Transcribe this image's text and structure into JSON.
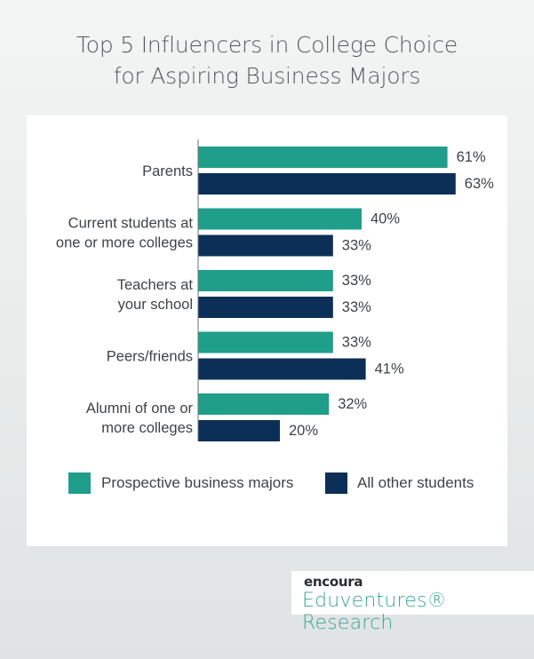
{
  "title_lines": [
    "Top 5 Influencers in College Choice",
    "for Aspiring Business Majors"
  ],
  "colors": {
    "prospective": "#1f9e89",
    "other": "#0b2f57"
  },
  "chart_data": {
    "type": "bar",
    "orientation": "horizontal",
    "categories": [
      [
        "Parents"
      ],
      [
        "Current students at",
        "one or more colleges"
      ],
      [
        "Teachers at",
        "your school"
      ],
      [
        "Peers/friends"
      ],
      [
        "Alumni of one or",
        "more colleges"
      ]
    ],
    "series": [
      {
        "name": "Prospective business majors",
        "values": [
          61,
          40,
          33,
          33,
          32
        ],
        "labels": [
          "61%",
          "40%",
          "33%",
          "33%",
          "32%"
        ]
      },
      {
        "name": "All other students",
        "values": [
          63,
          33,
          33,
          41,
          20
        ],
        "labels": [
          "63%",
          "33%",
          "33%",
          "41%",
          "20%"
        ]
      }
    ],
    "value_unit": "%",
    "xlim": [
      0,
      100
    ],
    "grid": false,
    "legend_position": "bottom"
  },
  "brand": {
    "top": "encoura",
    "bottom": "Eduventures® Research"
  }
}
